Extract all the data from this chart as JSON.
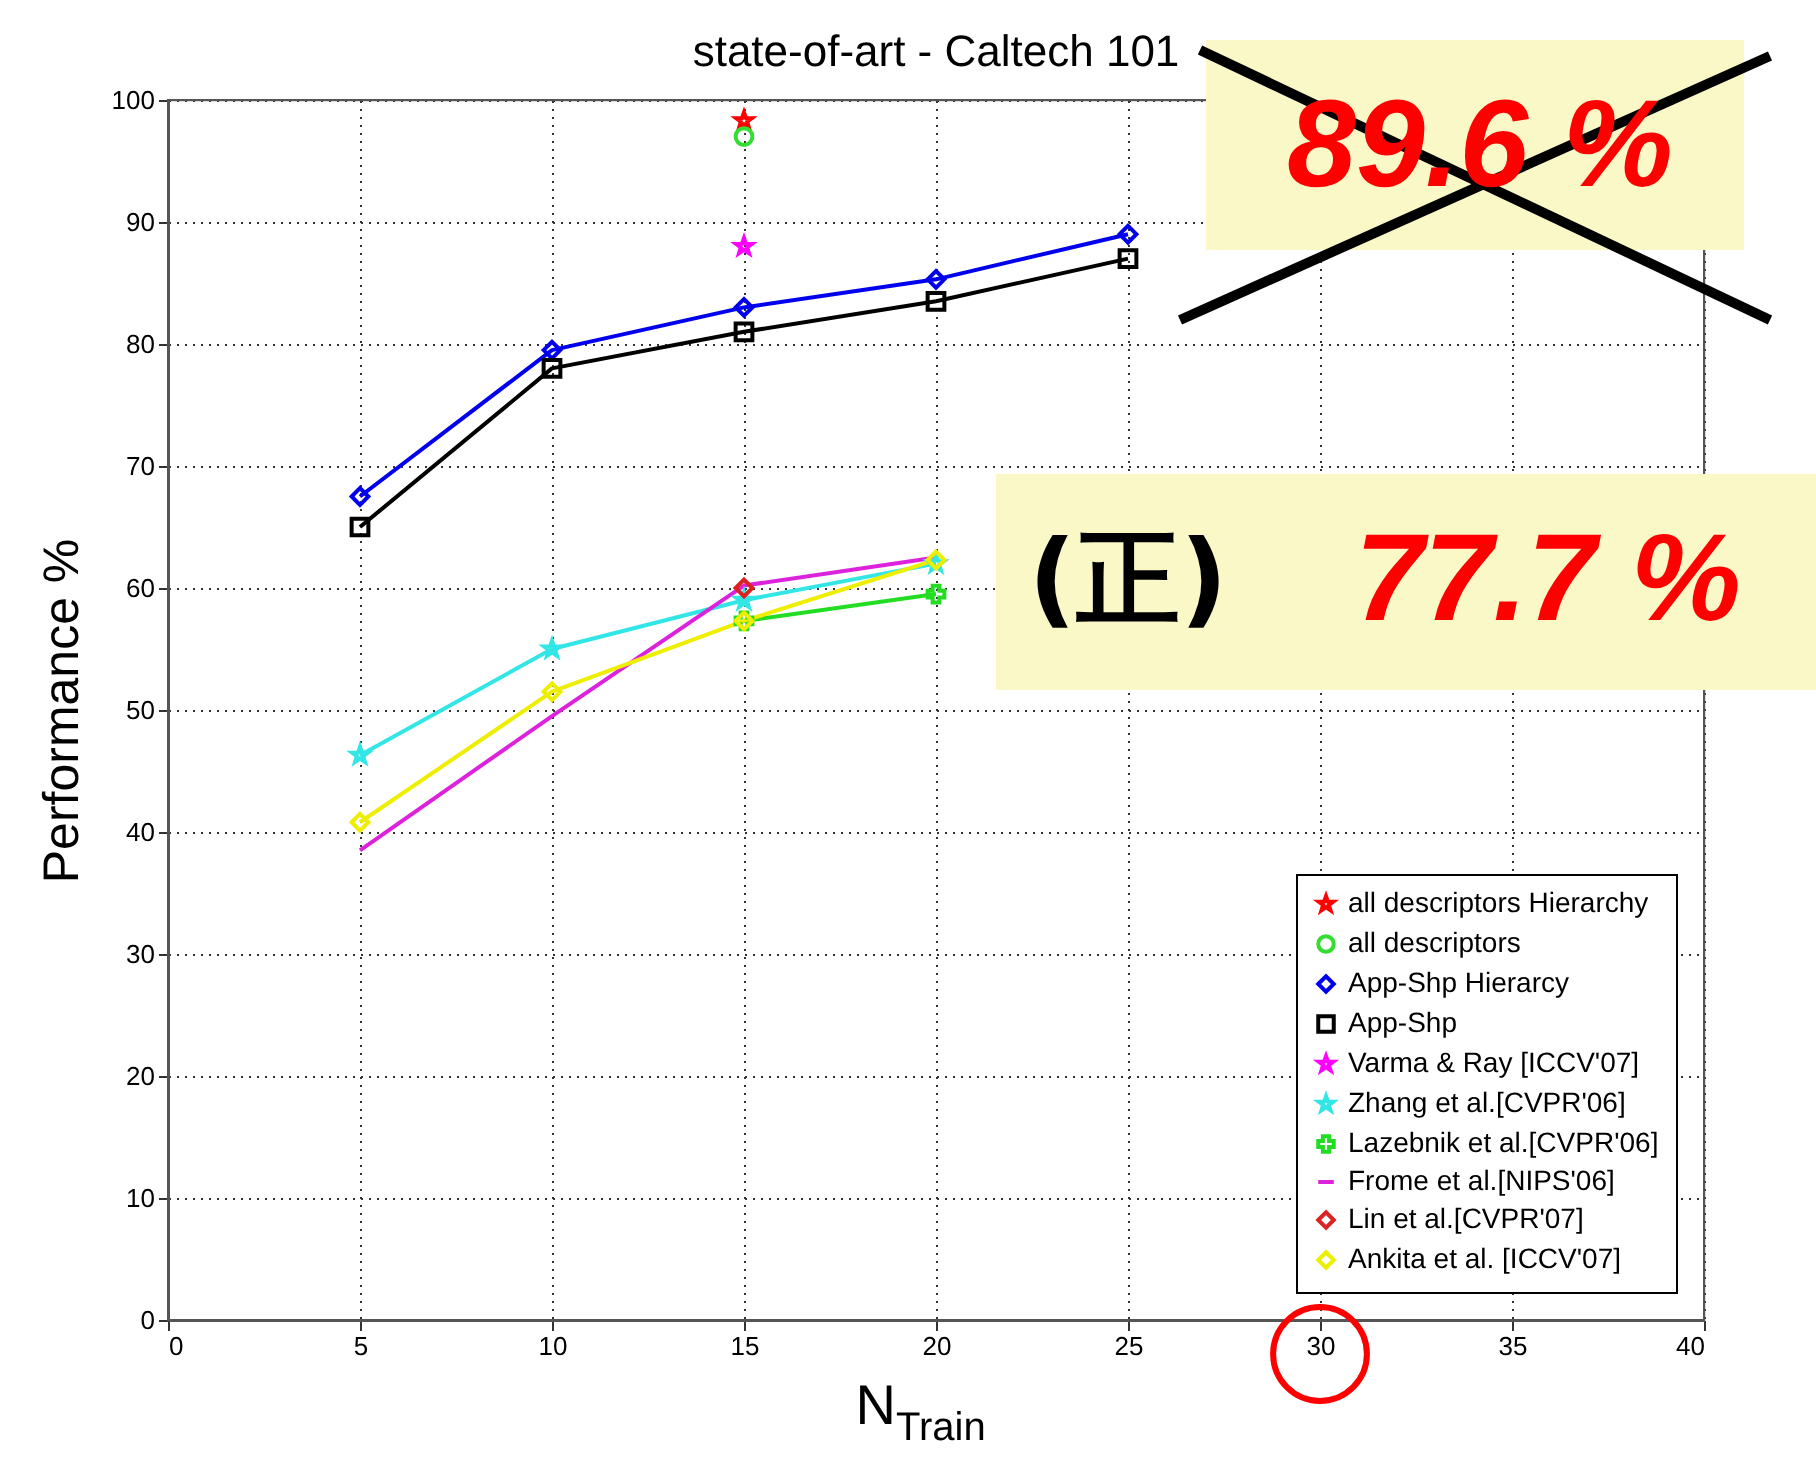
{
  "chart_data": {
    "type": "line",
    "title": "state-of-art - Caltech 101",
    "xlabel": "N$_{Train}$",
    "ylabel": "Performance %",
    "xlim": [
      0,
      40
    ],
    "xticks": [
      0,
      5,
      10,
      15,
      20,
      25,
      30,
      35,
      40
    ],
    "ylim": [
      0,
      100
    ],
    "yticks": [
      0,
      10,
      20,
      30,
      40,
      50,
      60,
      70,
      80,
      90,
      100
    ],
    "grid": true,
    "legend": "bottom right",
    "series": [
      {
        "name": "all descriptors Hierarchy",
        "type": "scatter",
        "marker": "star",
        "color": "#ff0000",
        "x": [
          15
        ],
        "values": [
          98.3
        ]
      },
      {
        "name": "all descriptors",
        "type": "scatter",
        "marker": "circle",
        "color": "#33dd33",
        "x": [
          15
        ],
        "values": [
          97
        ]
      },
      {
        "name": "App-Shp Hierarcy",
        "type": "line",
        "marker": "diamond",
        "color": "#0000ee",
        "x": [
          5,
          10,
          15,
          20,
          25
        ],
        "values": [
          67.5,
          79.5,
          83,
          85.3,
          89
        ]
      },
      {
        "name": "App-Shp",
        "type": "line",
        "marker": "square",
        "color": "#000000",
        "x": [
          5,
          10,
          15,
          20,
          25
        ],
        "values": [
          65,
          78,
          81,
          83.5,
          87
        ]
      },
      {
        "name": "Varma & Ray [ICCV'07]",
        "type": "scatter",
        "marker": "star",
        "color": "#ff00ff",
        "x": [
          15
        ],
        "values": [
          88
        ]
      },
      {
        "name": "Zhang et al.[CVPR'06]",
        "type": "line",
        "marker": "star",
        "color": "#33e6e6",
        "x": [
          5,
          10,
          15,
          20
        ],
        "values": [
          46.3,
          55,
          59,
          62
        ]
      },
      {
        "name": "Lazebnik et al.[CVPR'06]",
        "type": "line",
        "marker": "cross",
        "color": "#22dd22",
        "x": [
          15,
          20
        ],
        "values": [
          57.3,
          59.5
        ]
      },
      {
        "name": "Frome et al.[NIPS'06]",
        "type": "line",
        "marker": "none",
        "color": "#dd22dd",
        "x": [
          5,
          10,
          15,
          20
        ],
        "values": [
          38.5,
          49.5,
          60.2,
          62.5
        ]
      },
      {
        "name": "Lin et al.[CVPR'07]",
        "type": "scatter",
        "marker": "diamond",
        "color": "#dd2222",
        "x": [
          15
        ],
        "values": [
          60
        ]
      },
      {
        "name": "Ankita et al. [ICCV'07]",
        "type": "line",
        "marker": "diamond",
        "color": "#eeee00",
        "x": [
          5,
          10,
          15,
          20
        ],
        "values": [
          40.8,
          51.5,
          57.3,
          62.3
        ]
      }
    ],
    "annotations": [
      "89.6 %",
      "(正)",
      "77.7 %"
    ]
  }
}
